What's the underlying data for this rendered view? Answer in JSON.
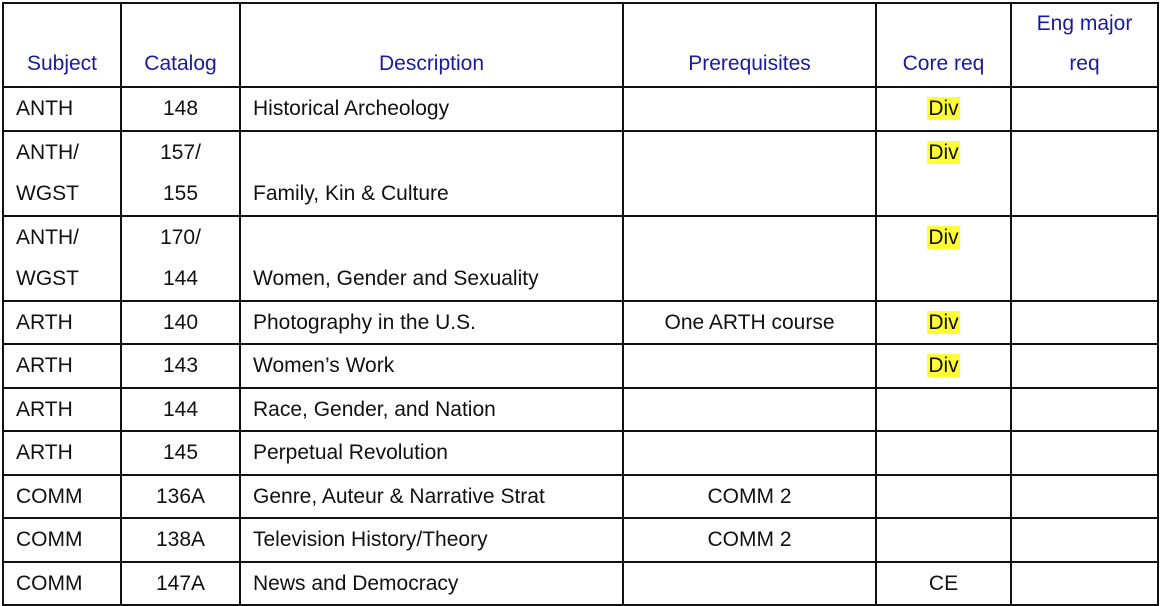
{
  "headers": [
    "Subject",
    "Catalog",
    "Description",
    "Prerequisites",
    "Core req",
    [
      "Eng major",
      "req"
    ]
  ],
  "highlight_color": "#ffff33",
  "header_color": "#1a1aa0",
  "rows": [
    {
      "subject": [
        "ANTH"
      ],
      "catalog": [
        "148"
      ],
      "description": "Historical Archeology",
      "prereq": "",
      "core": "Div",
      "core_highlight": true,
      "eng": ""
    },
    {
      "subject": [
        "ANTH/",
        "WGST"
      ],
      "catalog": [
        "157/",
        "155"
      ],
      "description": "Family, Kin & Culture",
      "prereq": "",
      "core": "Div",
      "core_highlight": true,
      "eng": ""
    },
    {
      "subject": [
        "ANTH/",
        "WGST"
      ],
      "catalog": [
        "170/",
        "144"
      ],
      "description": "Women, Gender and Sexuality",
      "prereq": "",
      "core": "Div",
      "core_highlight": true,
      "eng": ""
    },
    {
      "subject": [
        "ARTH"
      ],
      "catalog": [
        "140"
      ],
      "description": "Photography in the U.S.",
      "prereq": "One ARTH course",
      "core": "Div",
      "core_highlight": true,
      "eng": ""
    },
    {
      "subject": [
        "ARTH"
      ],
      "catalog": [
        "143"
      ],
      "description": "Women’s Work",
      "prereq": "",
      "core": "Div",
      "core_highlight": true,
      "eng": ""
    },
    {
      "subject": [
        "ARTH"
      ],
      "catalog": [
        "144"
      ],
      "description": "Race, Gender, and Nation",
      "prereq": "",
      "core": "",
      "core_highlight": false,
      "eng": ""
    },
    {
      "subject": [
        "ARTH"
      ],
      "catalog": [
        "145"
      ],
      "description": "Perpetual Revolution",
      "prereq": "",
      "core": "",
      "core_highlight": false,
      "eng": ""
    },
    {
      "subject": [
        "COMM"
      ],
      "catalog": [
        "136A"
      ],
      "description": "Genre, Auteur & Narrative Strat",
      "prereq": "COMM 2",
      "core": "",
      "core_highlight": false,
      "eng": ""
    },
    {
      "subject": [
        "COMM"
      ],
      "catalog": [
        "138A"
      ],
      "description": "Television History/Theory",
      "prereq": "COMM 2",
      "core": "",
      "core_highlight": false,
      "eng": ""
    },
    {
      "subject": [
        "COMM"
      ],
      "catalog": [
        "147A"
      ],
      "description": "News and Democracy",
      "prereq": "",
      "core": "CE",
      "core_highlight": false,
      "eng": ""
    }
  ]
}
